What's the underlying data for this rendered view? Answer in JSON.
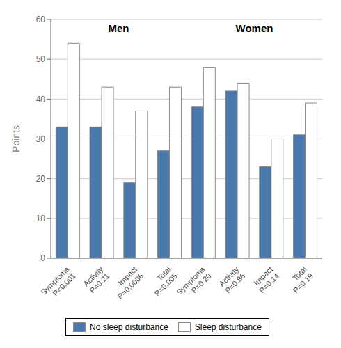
{
  "chart_data": {
    "type": "bar",
    "categories": [
      "Symptoms\nP=0.001",
      "Activity\nP=0.21",
      "Impact\nP=0.0006",
      "Total\nP=0.005",
      "Symptoms\nP=0.20",
      "Activity\nP=0.86",
      "Impact\nP=0.14",
      "Total\nP=0.19"
    ],
    "series": [
      {
        "name": "No sleep disturbance",
        "color": "#4a7aab",
        "values": [
          33,
          33,
          19,
          27,
          38,
          42,
          23,
          31
        ]
      },
      {
        "name": "Sleep disturbance",
        "color": "#ffffff",
        "values": [
          54,
          43,
          37,
          43,
          48,
          44,
          30,
          39
        ]
      }
    ],
    "ylabel": "Points",
    "ylim": [
      0,
      60
    ],
    "yticks": [
      0,
      10,
      20,
      30,
      40,
      50,
      60
    ],
    "grid": true,
    "legend": "bottom",
    "annotations": [
      "Men",
      "Women"
    ]
  }
}
